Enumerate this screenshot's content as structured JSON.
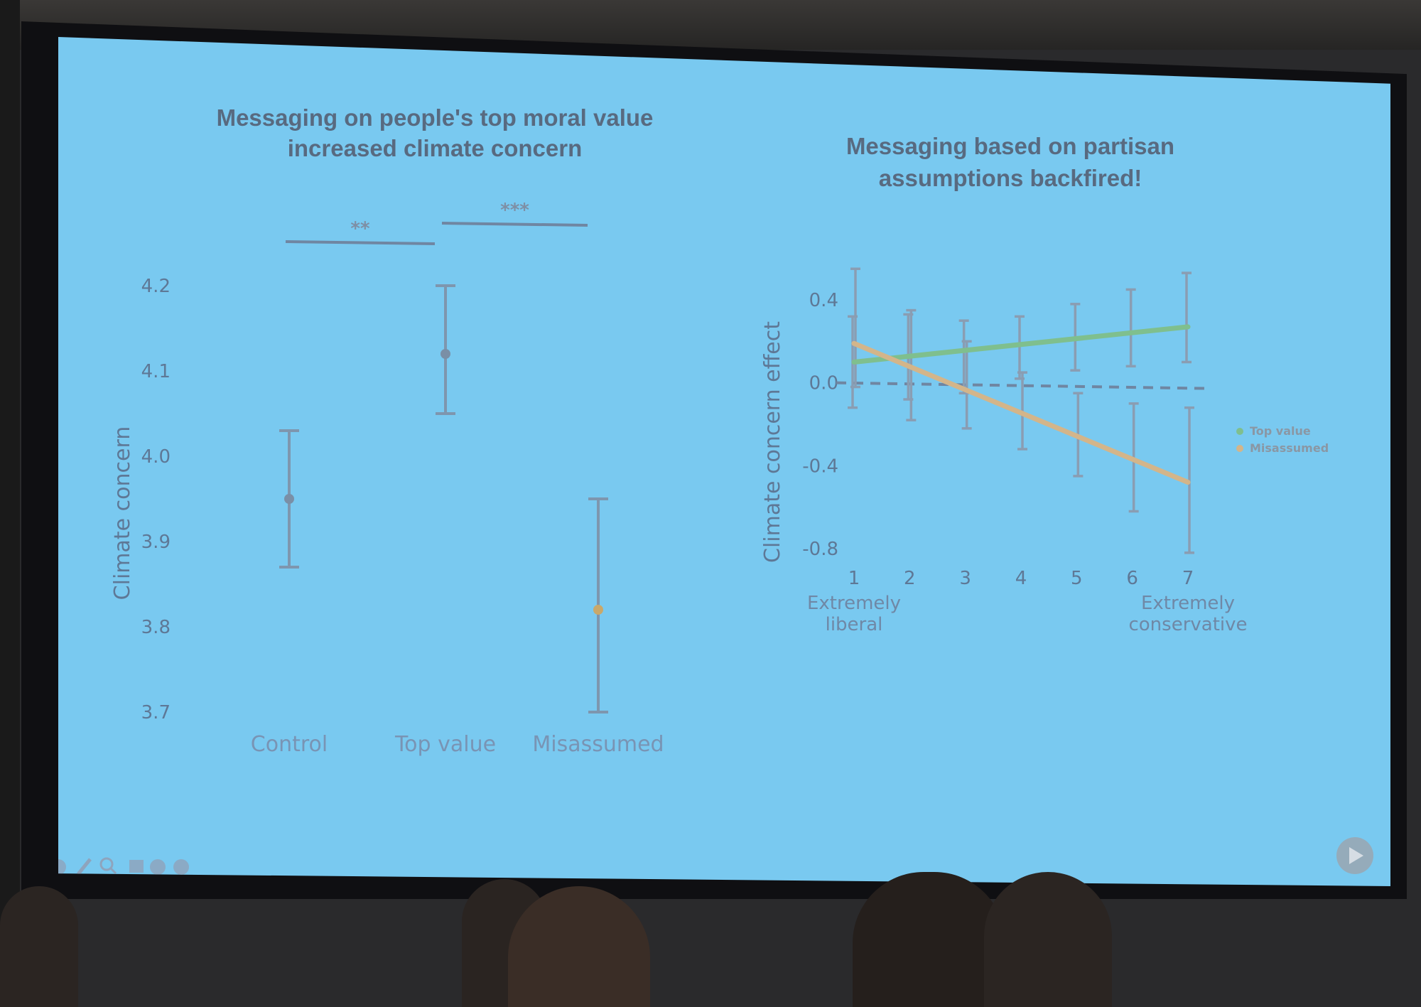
{
  "slide": {
    "background": "#79c9f0",
    "chart_left_title_line1": "Messaging on people's top moral value",
    "chart_left_title_line2": "increased climate concern",
    "chart_right_title_line1": "Messaging based on partisan",
    "chart_right_title_line2": "assumptions backfired!",
    "presenter_toolbar_icons": [
      "prev-icon",
      "pen-icon",
      "zoom-icon",
      "grid-icon",
      "menu-icon",
      "more-icon"
    ],
    "play_icon": "play-icon"
  },
  "chart_data": [
    {
      "type": "scatter",
      "title": "Messaging on people's top moral value increased climate concern",
      "ylabel": "Climate concern",
      "xlabel": "",
      "categories": [
        "Control",
        "Top value",
        "Misassumed"
      ],
      "y_ticks": [
        "4.2",
        "4.1",
        "4.0",
        "3.9",
        "3.8",
        "3.7"
      ],
      "ylim": [
        3.7,
        4.2
      ],
      "points": [
        {
          "category": "Control",
          "mean": 3.95,
          "lower": 3.87,
          "upper": 4.03
        },
        {
          "category": "Top value",
          "mean": 4.12,
          "lower": 4.05,
          "upper": 4.2
        },
        {
          "category": "Misassumed",
          "mean": 3.82,
          "lower": 3.7,
          "upper": 3.95
        }
      ],
      "significance": [
        {
          "from": "Control",
          "to": "Top value",
          "label": "**"
        },
        {
          "from": "Top value",
          "to": "Misassumed",
          "label": "***"
        }
      ],
      "point_color": "#7a8fa6",
      "misassumed_point_color": "#c9a86a"
    },
    {
      "type": "line",
      "title": "Messaging based on partisan assumptions backfired!",
      "ylabel": "Climate concern effect",
      "x_ticks": [
        "1",
        "2",
        "3",
        "4",
        "5",
        "6",
        "7"
      ],
      "x_tick_captions": {
        "1": [
          "Extremely",
          "liberal"
        ],
        "7": [
          "Extremely",
          "conservative"
        ]
      },
      "y_ticks": [
        "0.4",
        "0.0",
        "-0.4",
        "-0.8"
      ],
      "ylim": [
        -0.8,
        0.4
      ],
      "xlim": [
        1,
        7
      ],
      "reference_line": {
        "y": 0.0,
        "style": "dashed"
      },
      "legend_placement": "right",
      "series": [
        {
          "name": "Top value",
          "color": "#7fbf8e",
          "x": [
            1,
            7
          ],
          "y": [
            0.1,
            0.27
          ],
          "ci_x": [
            1,
            2,
            3,
            4,
            5,
            6,
            7
          ],
          "ci_lower": [
            -0.12,
            -0.08,
            -0.05,
            0.02,
            0.06,
            0.08,
            0.1
          ],
          "ci_upper": [
            0.32,
            0.33,
            0.3,
            0.32,
            0.38,
            0.45,
            0.53
          ]
        },
        {
          "name": "Misassumed",
          "color": "#d3b58a",
          "x": [
            1,
            7
          ],
          "y": [
            0.19,
            -0.48
          ],
          "ci_x": [
            1,
            2,
            3,
            4,
            5,
            6,
            7
          ],
          "ci_lower": [
            -0.02,
            -0.18,
            -0.22,
            -0.32,
            -0.45,
            -0.62,
            -0.82
          ],
          "ci_upper": [
            0.55,
            0.35,
            0.2,
            0.05,
            -0.05,
            -0.1,
            -0.12
          ]
        }
      ]
    }
  ]
}
